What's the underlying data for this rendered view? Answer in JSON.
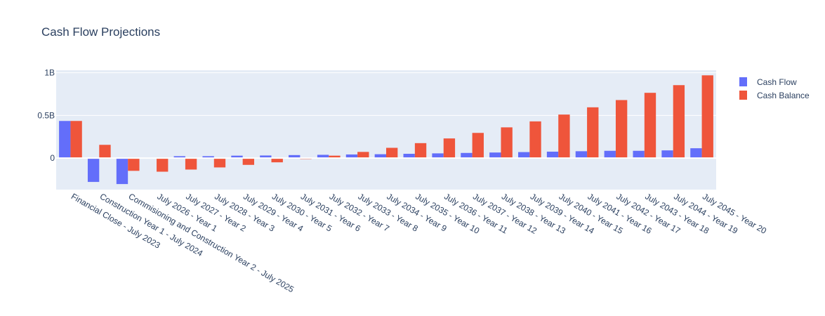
{
  "chart_data": {
    "type": "bar",
    "title": "Cash Flow Projections",
    "xlabel": "",
    "ylabel": "",
    "categories": [
      "Financial Close - July 2023",
      "Construction Year 1 - July 2024",
      "Commisioning and Construction Year 2 - July 2025",
      "July 2026 - Year 1",
      "July 2027 - Year 2",
      "July 2028 - Year 3",
      "July 2029 - Year 4",
      "July 2030 - Year 5",
      "July 2031 - Year 6",
      "July 2032 - Year 7",
      "July 2033 - Year 8",
      "July 2034 - Year 9",
      "July 2035 - Year 10",
      "July 2036 - Year 11",
      "July 2037 - Year 12",
      "July 2038 - Year 13",
      "July 2039 - Year 14",
      "July 2040 - Year 15",
      "July 2041 - Year 16",
      "July 2042 - Year 17",
      "July 2043 - Year 18",
      "July 2044 - Year 19",
      "July 2045 - Year 20"
    ],
    "series": [
      {
        "name": "Cash Flow",
        "color": "#636efa",
        "values": [
          435000000,
          -280000000,
          -305000000,
          5000000,
          22000000,
          22000000,
          28000000,
          30000000,
          35000000,
          38000000,
          42000000,
          45000000,
          50000000,
          55000000,
          60000000,
          65000000,
          70000000,
          75000000,
          80000000,
          85000000,
          85000000,
          90000000,
          115000000
        ]
      },
      {
        "name": "Cash Balance",
        "color": "#ef553b",
        "values": [
          435000000,
          155000000,
          -150000000,
          -160000000,
          -135000000,
          -110000000,
          -80000000,
          -50000000,
          -12000000,
          28000000,
          72000000,
          120000000,
          175000000,
          230000000,
          295000000,
          360000000,
          430000000,
          510000000,
          595000000,
          680000000,
          765000000,
          855000000,
          970000000
        ]
      }
    ],
    "y_ticks": [
      {
        "value": 0,
        "label": "0"
      },
      {
        "value": 500000000,
        "label": "0.5B"
      },
      {
        "value": 1000000000,
        "label": "1B"
      }
    ],
    "ylim": [
      -370000000,
      1030000000
    ],
    "grid": true,
    "legend_position": "top-right",
    "plot_background": "#e5ecf6"
  }
}
